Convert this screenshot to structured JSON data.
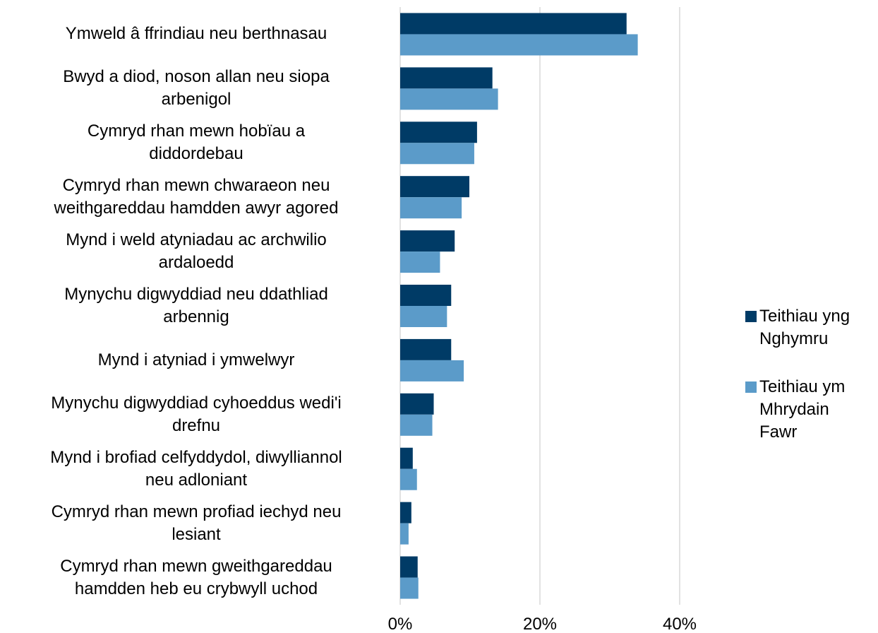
{
  "chart_data": {
    "type": "barh",
    "categories": [
      "Ymweld â ffrindiau neu berthnasau",
      "Bwyd a diod, noson allan neu siopa\narbenigol",
      "Cymryd rhan mewn hobïau a\ndiddordebau",
      "Cymryd rhan mewn chwaraeon neu\nweithgareddau hamdden awyr agored",
      "Mynd i weld atyniadau ac archwilio\nardaloedd",
      "Mynychu digwyddiad neu ddathliad\narbennig",
      "Mynd i atyniad i ymwelwyr",
      "Mynychu digwyddiad cyhoeddus wedi'i\ndrefnu",
      "Mynd i brofiad celfyddydol, diwylliannol\nneu adloniant",
      "Cymryd rhan mewn profiad iechyd neu\nlesiant",
      "Cymryd rhan mewn gweithgareddau\nhamdden heb eu crybwyll uchod"
    ],
    "series": [
      {
        "name": "Teithiau yng\nNghymru",
        "color": "#003b66",
        "values": [
          32.4,
          13.2,
          11.0,
          9.9,
          7.8,
          7.3,
          7.3,
          4.8,
          1.8,
          1.6,
          2.5
        ]
      },
      {
        "name": "Teithiau ym\nMhrydain\nFawr",
        "color": "#5b9bc9",
        "values": [
          34.0,
          14.0,
          10.6,
          8.8,
          5.7,
          6.7,
          9.1,
          4.6,
          2.4,
          1.2,
          2.6
        ]
      }
    ],
    "xlim": [
      0,
      40
    ],
    "xticks": [
      {
        "value": 0,
        "label": "0%"
      },
      {
        "value": 20,
        "label": "20%"
      },
      {
        "value": 40,
        "label": "40%"
      }
    ],
    "grid": true,
    "legend": "right"
  }
}
